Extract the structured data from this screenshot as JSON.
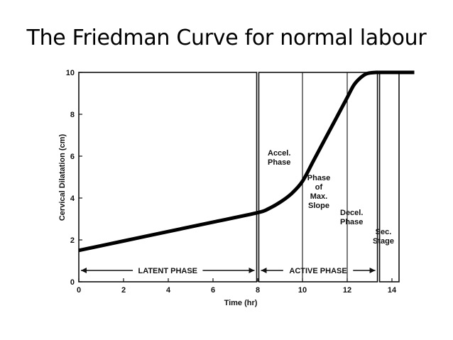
{
  "slide": {
    "title": "The Friedman Curve for normal labour"
  },
  "chart_data": {
    "type": "line",
    "title": "",
    "xlabel": "Time (hr)",
    "ylabel": "Cervical Dilatation (cm)",
    "xlim": [
      0,
      15
    ],
    "ylim": [
      0,
      10
    ],
    "x_ticks": [
      "0",
      "2",
      "4",
      "6",
      "8",
      "10",
      "12",
      "14"
    ],
    "y_ticks": [
      "0",
      "2",
      "4",
      "6",
      "8",
      "10"
    ],
    "grid": false,
    "series": [
      {
        "name": "",
        "points": [
          [
            0,
            1.5
          ],
          [
            2,
            1.95
          ],
          [
            4,
            2.4
          ],
          [
            6,
            2.85
          ],
          [
            8,
            3.3
          ],
          [
            8.5,
            3.5
          ],
          [
            9,
            3.8
          ],
          [
            9.5,
            4.2
          ],
          [
            10,
            4.8
          ],
          [
            10.5,
            5.8
          ],
          [
            11,
            6.8
          ],
          [
            11.5,
            7.8
          ],
          [
            12,
            8.8
          ],
          [
            12.3,
            9.4
          ],
          [
            12.6,
            9.75
          ],
          [
            12.9,
            9.95
          ],
          [
            13.3,
            10
          ],
          [
            13.4,
            10
          ],
          [
            14,
            10
          ],
          [
            15,
            10
          ]
        ]
      }
    ],
    "phase_boundaries": [
      8,
      10,
      12,
      13.4
    ],
    "phases": [
      {
        "label": "LATENT PHASE",
        "start": 0,
        "end": 8
      },
      {
        "label": "ACTIVE PHASE",
        "start": 8,
        "end": 13.4
      }
    ],
    "annotations": [
      {
        "lines": [
          "Accel.",
          "Phase"
        ]
      },
      {
        "lines": [
          "Phase",
          "of",
          "Max.",
          "Slope"
        ]
      },
      {
        "lines": [
          "Decel.",
          "Phase"
        ]
      },
      {
        "lines": [
          "Sec.",
          "Stage"
        ]
      }
    ]
  }
}
